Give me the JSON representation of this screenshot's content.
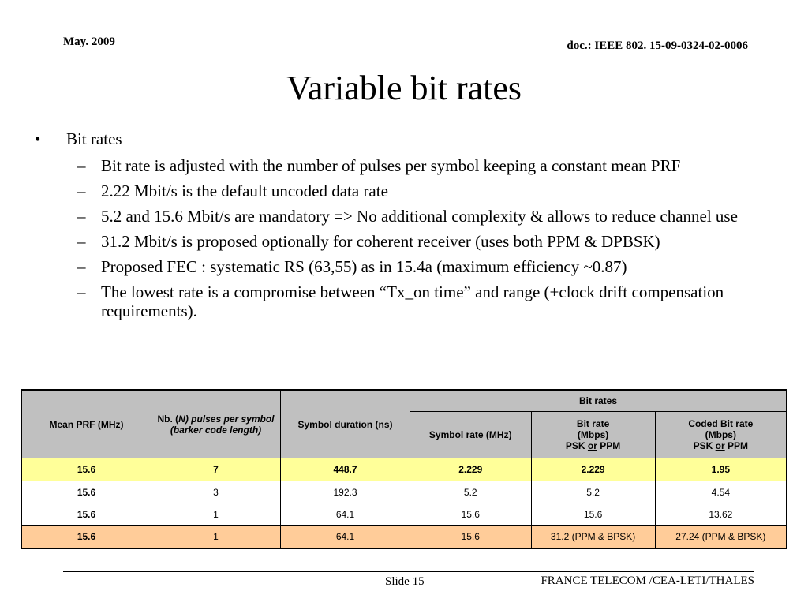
{
  "header": {
    "date": "May. 2009",
    "doc": "doc.: IEEE 802. 15-09-0324-02-0006"
  },
  "title": "Variable bit rates",
  "bullet": {
    "marker": "•",
    "text": "Bit rates"
  },
  "subs": [
    "Bit rate is adjusted with the number of pulses per symbol keeping a constant mean PRF",
    "2.22 Mbit/s is the default uncoded data rate",
    "5.2 and 15.6 Mbit/s are mandatory  => No additional complexity & allows to reduce channel use",
    "31.2 Mbit/s is proposed optionally for coherent receiver (uses both PPM & DPBSK)",
    "Proposed FEC : systematic RS (63,55) as in 15.4a (maximum efficiency ~0.87)",
    "The lowest rate is a compromise between “Tx_on time” and range (+clock drift compensation requirements)."
  ],
  "sub_marker": "–",
  "table": {
    "h_prf": "Mean PRF (MHz)",
    "h_nb_pre": "Nb. (",
    "h_nb_n": "N",
    "h_nb_post": ") pulses per symbol",
    "h_nb_barker": "(barker code length)",
    "h_sym_dur": "Symbol duration (ns)",
    "h_bitrates": "Bit rates",
    "h_sym_rate": "Symbol rate (MHz)",
    "h_br_1": "Bit rate",
    "h_br_2": "(Mbps)",
    "h_cbr_1": "Coded Bit rate",
    "h_cbr_2": "(Mbps)",
    "h_psk": "PSK",
    "h_or": "or",
    "h_ppm": "PPM",
    "rows": [
      [
        "15.6",
        "7",
        "448.7",
        "2.229",
        "2.229",
        "1.95"
      ],
      [
        "15.6",
        "3",
        "192.3",
        "5.2",
        "5.2",
        "4.54"
      ],
      [
        "15.6",
        "1",
        "64.1",
        "15.6",
        "15.6",
        "13.62"
      ],
      [
        "15.6",
        "1",
        "64.1",
        "15.6",
        "31.2 (PPM & BPSK)",
        "27.24 (PPM & BPSK)"
      ]
    ]
  },
  "footer": {
    "slide": "Slide 15",
    "org": "FRANCE TELECOM /CEA-LETI/THALES"
  }
}
